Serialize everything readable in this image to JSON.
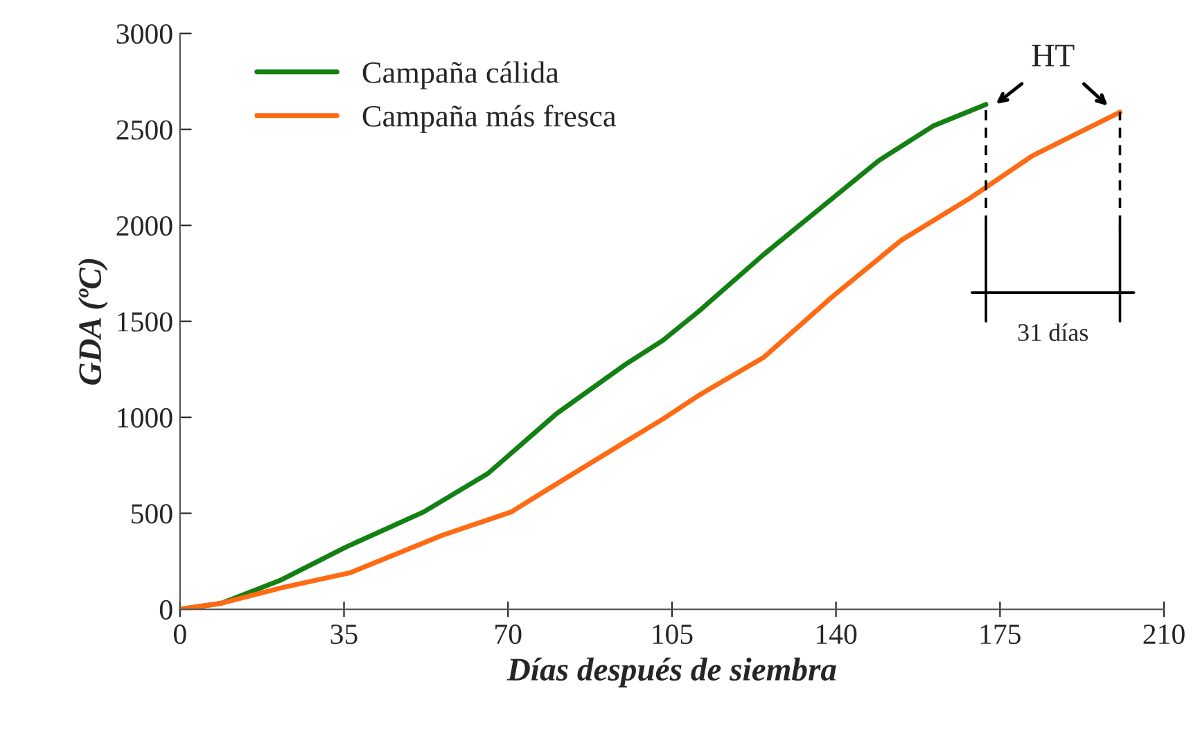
{
  "chart_data": {
    "type": "line",
    "xlabel": "Días después de siembra",
    "ylabel": "GDA (ºC)",
    "xlim": [
      0,
      210
    ],
    "xticks": [
      0,
      35,
      70,
      105,
      140,
      175,
      210
    ],
    "ylim": [
      0,
      3000
    ],
    "yticks": [
      0,
      500,
      1000,
      1500,
      2000,
      2500,
      3000
    ],
    "grid": false,
    "legend": "top left",
    "marker": "none",
    "line_style": "solid",
    "series": [
      {
        "name": "Campaña cálida",
        "color": "#138013",
        "x": [
          0,
          8.8,
          21.6,
          35.4,
          52,
          65.7,
          80.4,
          95.1,
          103,
          110.9,
          124.6,
          139.3,
          149.1,
          160.9,
          172
        ],
        "values": [
          0,
          31,
          153,
          324,
          507,
          707,
          1020,
          1276,
          1400,
          1556,
          1849,
          2142,
          2337,
          2520,
          2630
        ]
      },
      {
        "name": "Campaña más fresca",
        "color": "#ff6a13",
        "x": [
          0,
          8.8,
          21.6,
          36.3,
          55.9,
          70.7,
          80.4,
          95.1,
          103,
          110.9,
          124.6,
          139.3,
          153.9,
          168.6,
          181.9,
          200.6
        ],
        "values": [
          0,
          31,
          112,
          190,
          385,
          507,
          654,
          873,
          990,
          1117,
          1313,
          1630,
          1922,
          2142,
          2362,
          2590
        ]
      }
    ],
    "annotations": [
      "HT",
      "31 días"
    ]
  }
}
